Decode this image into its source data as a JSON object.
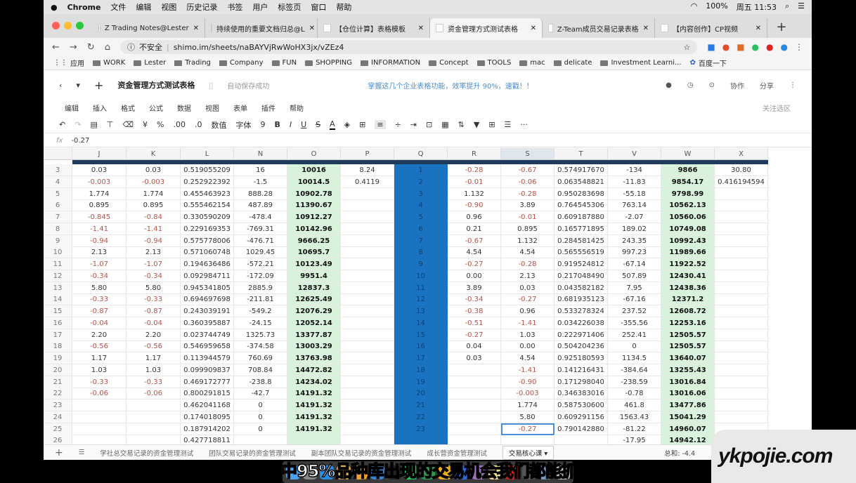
{
  "os_menu": {
    "apple": "",
    "app": "Chrome",
    "items": [
      "文件",
      "编辑",
      "视图",
      "历史记录",
      "书签",
      "用户",
      "标签页",
      "窗口",
      "帮助"
    ],
    "status": [
      "100%",
      "周五 11:53"
    ]
  },
  "tabs": [
    {
      "label": "Z Trading Notes@Lester"
    },
    {
      "label": "持续使用的重要文档归总@L"
    },
    {
      "label": "【仓位计算】表格模板"
    },
    {
      "label": "资金管理方式测试表格",
      "active": true
    },
    {
      "label": "Z-Team成员交易记录表格"
    },
    {
      "label": "【内容创作】CP视频"
    }
  ],
  "address": {
    "security": "不安全",
    "url": "shimo.im/sheets/naBAYVjRwWoHX3jx/vZEz4"
  },
  "bookmarks": [
    "应用",
    "WORK",
    "Lester",
    "Trading",
    "Company",
    "FUN",
    "SHOPPING",
    "INFORMATION",
    "Concept",
    "TOOLS",
    "mac",
    "delicate",
    "Investment Learni...",
    "百度一下"
  ],
  "app": {
    "title": "资金管理方式测试表格",
    "saved": "自动保存成功",
    "promo": "掌握这几个企业表格功能，效率提升 90%，速戳！！",
    "collab": "协作",
    "share": "分享"
  },
  "menus": [
    "编辑",
    "插入",
    "格式",
    "公式",
    "数据",
    "视图",
    "表单",
    "插件",
    "帮助"
  ],
  "menus_right": "关注选区",
  "toolbar": {
    "currency": "¥",
    "percent": "%",
    "dec_inc": ".00",
    "dec_dec": ".0",
    "format": "数值",
    "font": "字体",
    "size": "9",
    "bold": "B",
    "italic": "I",
    "underline": "U",
    "strike": "S",
    "color": "A",
    "more": "···"
  },
  "formula": {
    "fx": "fx",
    "value": "-0.27"
  },
  "columns": [
    "J",
    "K",
    "L",
    "N",
    "O",
    "P",
    "Q",
    "R",
    "S",
    "T",
    "V",
    "W",
    "X"
  ],
  "selected_column": "S",
  "rows": [
    [
      "3",
      "0.03",
      "0.03",
      "0.519055209",
      "16",
      "10016",
      "8.24",
      "1",
      "-0.28",
      "-0.67",
      "0.574917670",
      "-134",
      "9866",
      "30.80"
    ],
    [
      "4",
      "-0.003",
      "-0.003",
      "0.252922392",
      "-1.5",
      "10014.5",
      "0.4119",
      "2",
      "-0.01",
      "-0.06",
      "0.063548821",
      "-11.83",
      "9854.17",
      "0.416194594"
    ],
    [
      "5",
      "1.774",
      "1.774",
      "0.455463923",
      "888.28",
      "10902.78",
      "",
      "3",
      "1.132",
      "-0.28",
      "0.950283698",
      "-55.18",
      "9798.99",
      ""
    ],
    [
      "6",
      "0.895",
      "0.895",
      "0.555462154",
      "487.89",
      "11390.67",
      "",
      "4",
      "-0.90",
      "3.89",
      "0.764545306",
      "763.14",
      "10562.13",
      ""
    ],
    [
      "7",
      "-0.845",
      "-0.84",
      "0.330590209",
      "-478.4",
      "10912.27",
      "",
      "5",
      "0.96",
      "-0.01",
      "0.609187880",
      "-2.07",
      "10560.06",
      ""
    ],
    [
      "8",
      "-1.41",
      "-1.41",
      "0.229169353",
      "-769.31",
      "10142.96",
      "",
      "6",
      "0.21",
      "0.895",
      "0.165771895",
      "189.02",
      "10749.08",
      ""
    ],
    [
      "9",
      "-0.94",
      "-0.94",
      "0.575778006",
      "-476.71",
      "9666.25",
      "",
      "7",
      "-0.67",
      "1.132",
      "0.284581425",
      "243.35",
      "10992.43",
      ""
    ],
    [
      "10",
      "2.13",
      "2.13",
      "0.571060748",
      "1029.45",
      "10695.7",
      "",
      "8",
      "4.54",
      "4.54",
      "0.565556519",
      "997.23",
      "11989.66",
      ""
    ],
    [
      "11",
      "-1.07",
      "-1.07",
      "0.194636486",
      "-572.21",
      "10123.49",
      "",
      "9",
      "-0.27",
      "-0.28",
      "0.919524812",
      "-67.14",
      "11922.52",
      ""
    ],
    [
      "12",
      "-0.34",
      "-0.34",
      "0.092984711",
      "-172.09",
      "9951.4",
      "",
      "10",
      "0.00",
      "2.13",
      "0.217048490",
      "507.89",
      "12430.41",
      ""
    ],
    [
      "13",
      "5.80",
      "5.80",
      "0.945341805",
      "2885.9",
      "12837.3",
      "",
      "11",
      "3.89",
      "0.03",
      "0.043582182",
      "7.95",
      "12438.36",
      ""
    ],
    [
      "14",
      "-0.33",
      "-0.33",
      "0.694697698",
      "-211.81",
      "12625.49",
      "",
      "12",
      "-0.34",
      "-0.27",
      "0.681935123",
      "-67.16",
      "12371.2",
      ""
    ],
    [
      "15",
      "-0.87",
      "-0.87",
      "0.243039191",
      "-549.2",
      "12076.29",
      "",
      "13",
      "-0.38",
      "0.96",
      "0.533278324",
      "237.52",
      "12608.72",
      ""
    ],
    [
      "16",
      "-0.04",
      "-0.04",
      "0.360395887",
      "-24.15",
      "12052.14",
      "",
      "14",
      "-0.51",
      "-1.41",
      "0.034226038",
      "-355.56",
      "12253.16",
      ""
    ],
    [
      "17",
      "2.20",
      "2.20",
      "0.023744749",
      "1325.73",
      "13377.87",
      "",
      "15",
      "-0.27",
      "1.03",
      "0.222971406",
      "252.41",
      "12505.57",
      ""
    ],
    [
      "18",
      "-0.56",
      "-0.56",
      "0.546959658",
      "-374.58",
      "13003.29",
      "",
      "16",
      "0.04",
      "0.00",
      "0.504204236",
      "0",
      "12505.57",
      ""
    ],
    [
      "19",
      "1.17",
      "1.17",
      "0.113944579",
      "760.69",
      "13763.98",
      "",
      "17",
      "0.03",
      "4.54",
      "0.925180593",
      "1134.5",
      "13640.07",
      ""
    ],
    [
      "20",
      "1.03",
      "1.03",
      "0.099909837",
      "708.84",
      "14472.82",
      "",
      "18",
      "",
      "-1.41",
      "0.141216431",
      "-384.64",
      "13255.43",
      ""
    ],
    [
      "21",
      "-0.33",
      "-0.33",
      "0.469172777",
      "-238.8",
      "14234.02",
      "",
      "19",
      "",
      "-0.90",
      "0.171298040",
      "-238.59",
      "13016.84",
      ""
    ],
    [
      "22",
      "-0.06",
      "-0.06",
      "0.800291815",
      "-42.7",
      "14191.32",
      "",
      "20",
      "",
      "-0.003",
      "0.346383016",
      "-0.78",
      "13016.06",
      ""
    ],
    [
      "23",
      "",
      "",
      "0.462041168",
      "0",
      "14191.32",
      "",
      "21",
      "",
      "1.774",
      "0.587530600",
      "461.8",
      "13477.86",
      ""
    ],
    [
      "24",
      "",
      "",
      "0.174018095",
      "0",
      "14191.32",
      "",
      "22",
      "",
      "5.80",
      "0.609291156",
      "1563.43",
      "15041.29",
      ""
    ],
    [
      "25",
      "",
      "",
      "0.187914202",
      "0",
      "14191.32",
      "",
      "23",
      "",
      "-0.27",
      "0.790142880",
      "-81.22",
      "14960.07",
      ""
    ],
    [
      "26",
      "",
      "",
      "0.427718811",
      "",
      "",
      "",
      "",
      "",
      "",
      "",
      "-17.95",
      "14942.12",
      ""
    ]
  ],
  "sheet_tabs": [
    "学社总交易记录的资金管理测试",
    "团队交易记录的资金管理测试",
    "副本团队交易记录的资金管理测试",
    "成长营资金管理测试",
    "交易核心课"
  ],
  "active_sheet": "交易核心课",
  "status_sum": "总和: -4.4",
  "subtitle": "三年当中95%品种库出现的交易机会我们都能抓到",
  "watermark": "ykpojie.com",
  "colors": {
    "accent_blue": "#1a73c0",
    "green_fill": "#d9f2dc",
    "negative": "#b5534a",
    "header_band": "#1e3a5c"
  }
}
